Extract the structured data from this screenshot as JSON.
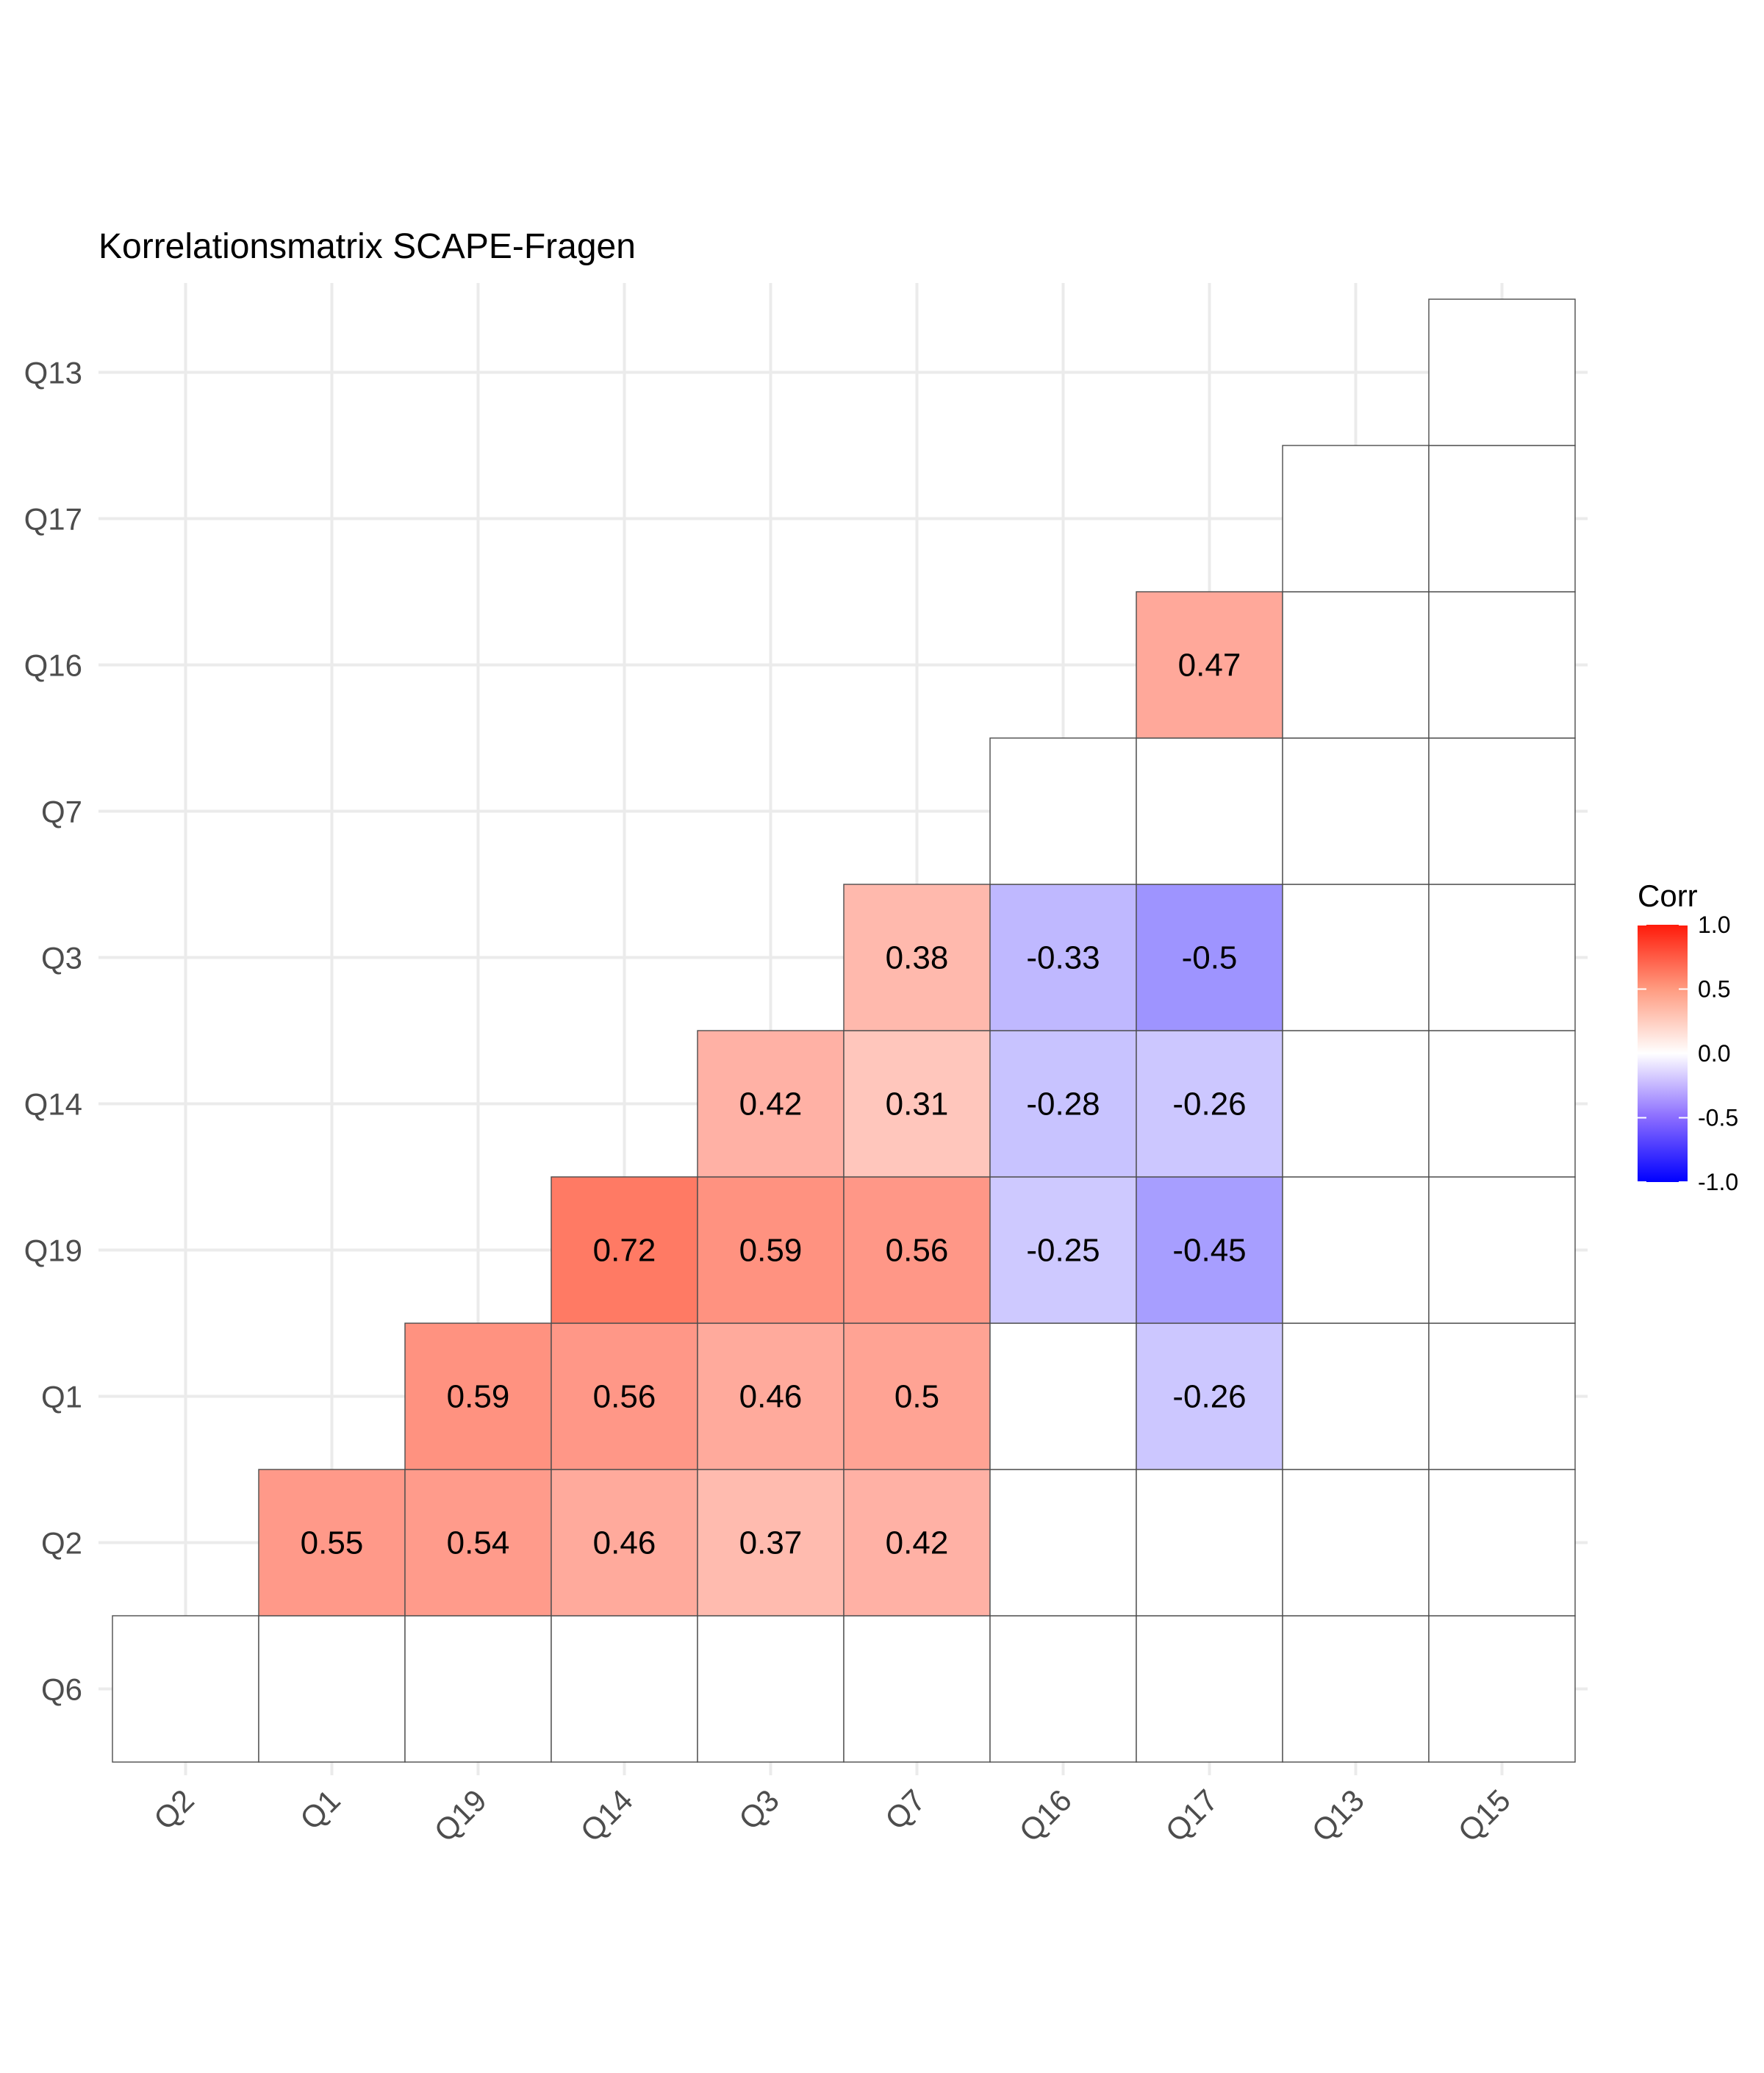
{
  "chart_data": {
    "type": "heatmap",
    "title": "Korrelationsmatrix SCAPE-Fragen",
    "xlabel": "",
    "ylabel": "",
    "x_categories": [
      "Q2",
      "Q1",
      "Q19",
      "Q14",
      "Q3",
      "Q7",
      "Q16",
      "Q17",
      "Q13",
      "Q15"
    ],
    "y_categories": [
      "Q6",
      "Q2",
      "Q1",
      "Q19",
      "Q14",
      "Q3",
      "Q7",
      "Q16",
      "Q17",
      "Q13"
    ],
    "cells": [
      {
        "x": "Q2",
        "y": "Q6",
        "value": null,
        "label": ""
      },
      {
        "x": "Q1",
        "y": "Q6",
        "value": null,
        "label": ""
      },
      {
        "x": "Q19",
        "y": "Q6",
        "value": null,
        "label": ""
      },
      {
        "x": "Q14",
        "y": "Q6",
        "value": null,
        "label": ""
      },
      {
        "x": "Q3",
        "y": "Q6",
        "value": null,
        "label": ""
      },
      {
        "x": "Q7",
        "y": "Q6",
        "value": null,
        "label": ""
      },
      {
        "x": "Q16",
        "y": "Q6",
        "value": null,
        "label": ""
      },
      {
        "x": "Q17",
        "y": "Q6",
        "value": null,
        "label": ""
      },
      {
        "x": "Q13",
        "y": "Q6",
        "value": null,
        "label": ""
      },
      {
        "x": "Q15",
        "y": "Q6",
        "value": null,
        "label": ""
      },
      {
        "x": "Q1",
        "y": "Q2",
        "value": 0.55,
        "label": "0.55"
      },
      {
        "x": "Q19",
        "y": "Q2",
        "value": 0.54,
        "label": "0.54"
      },
      {
        "x": "Q14",
        "y": "Q2",
        "value": 0.46,
        "label": "0.46"
      },
      {
        "x": "Q3",
        "y": "Q2",
        "value": 0.37,
        "label": "0.37"
      },
      {
        "x": "Q7",
        "y": "Q2",
        "value": 0.42,
        "label": "0.42"
      },
      {
        "x": "Q16",
        "y": "Q2",
        "value": null,
        "label": ""
      },
      {
        "x": "Q17",
        "y": "Q2",
        "value": null,
        "label": ""
      },
      {
        "x": "Q13",
        "y": "Q2",
        "value": null,
        "label": ""
      },
      {
        "x": "Q15",
        "y": "Q2",
        "value": null,
        "label": ""
      },
      {
        "x": "Q19",
        "y": "Q1",
        "value": 0.59,
        "label": "0.59"
      },
      {
        "x": "Q14",
        "y": "Q1",
        "value": 0.56,
        "label": "0.56"
      },
      {
        "x": "Q3",
        "y": "Q1",
        "value": 0.46,
        "label": "0.46"
      },
      {
        "x": "Q7",
        "y": "Q1",
        "value": 0.5,
        "label": "0.5"
      },
      {
        "x": "Q16",
        "y": "Q1",
        "value": null,
        "label": ""
      },
      {
        "x": "Q17",
        "y": "Q1",
        "value": -0.26,
        "label": "-0.26"
      },
      {
        "x": "Q13",
        "y": "Q1",
        "value": null,
        "label": ""
      },
      {
        "x": "Q15",
        "y": "Q1",
        "value": null,
        "label": ""
      },
      {
        "x": "Q14",
        "y": "Q19",
        "value": 0.72,
        "label": "0.72"
      },
      {
        "x": "Q3",
        "y": "Q19",
        "value": 0.59,
        "label": "0.59"
      },
      {
        "x": "Q7",
        "y": "Q19",
        "value": 0.56,
        "label": "0.56"
      },
      {
        "x": "Q16",
        "y": "Q19",
        "value": -0.25,
        "label": "-0.25"
      },
      {
        "x": "Q17",
        "y": "Q19",
        "value": -0.45,
        "label": "-0.45"
      },
      {
        "x": "Q13",
        "y": "Q19",
        "value": null,
        "label": ""
      },
      {
        "x": "Q15",
        "y": "Q19",
        "value": null,
        "label": ""
      },
      {
        "x": "Q3",
        "y": "Q14",
        "value": 0.42,
        "label": "0.42"
      },
      {
        "x": "Q7",
        "y": "Q14",
        "value": 0.31,
        "label": "0.31"
      },
      {
        "x": "Q16",
        "y": "Q14",
        "value": -0.28,
        "label": "-0.28"
      },
      {
        "x": "Q17",
        "y": "Q14",
        "value": -0.26,
        "label": "-0.26"
      },
      {
        "x": "Q13",
        "y": "Q14",
        "value": null,
        "label": ""
      },
      {
        "x": "Q15",
        "y": "Q14",
        "value": null,
        "label": ""
      },
      {
        "x": "Q7",
        "y": "Q3",
        "value": 0.38,
        "label": "0.38"
      },
      {
        "x": "Q16",
        "y": "Q3",
        "value": -0.33,
        "label": "-0.33"
      },
      {
        "x": "Q17",
        "y": "Q3",
        "value": -0.5,
        "label": "-0.5"
      },
      {
        "x": "Q13",
        "y": "Q3",
        "value": null,
        "label": ""
      },
      {
        "x": "Q15",
        "y": "Q3",
        "value": null,
        "label": ""
      },
      {
        "x": "Q16",
        "y": "Q7",
        "value": null,
        "label": ""
      },
      {
        "x": "Q17",
        "y": "Q7",
        "value": null,
        "label": ""
      },
      {
        "x": "Q13",
        "y": "Q7",
        "value": null,
        "label": ""
      },
      {
        "x": "Q15",
        "y": "Q7",
        "value": null,
        "label": ""
      },
      {
        "x": "Q17",
        "y": "Q16",
        "value": 0.47,
        "label": "0.47"
      },
      {
        "x": "Q13",
        "y": "Q16",
        "value": null,
        "label": ""
      },
      {
        "x": "Q15",
        "y": "Q16",
        "value": null,
        "label": ""
      },
      {
        "x": "Q13",
        "y": "Q17",
        "value": null,
        "label": ""
      },
      {
        "x": "Q15",
        "y": "Q17",
        "value": null,
        "label": ""
      },
      {
        "x": "Q15",
        "y": "Q13",
        "value": null,
        "label": ""
      }
    ],
    "color_scale": {
      "low": "#0000ff",
      "mid": "#ffffff",
      "high": "#ff0000",
      "range": [
        -1,
        1
      ]
    },
    "legend": {
      "title": "Corr",
      "position": "right",
      "ticks": [
        "1.0",
        "0.5",
        "0.0",
        "-0.5",
        "-1.0"
      ]
    },
    "grid": true
  }
}
